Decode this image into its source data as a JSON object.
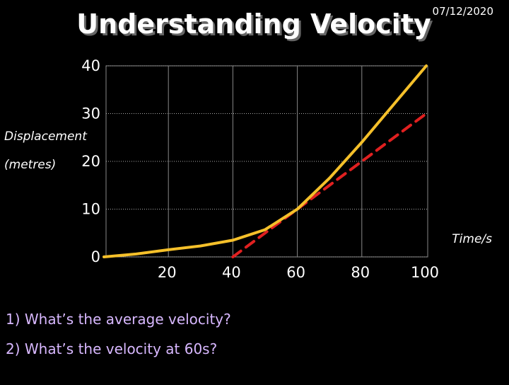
{
  "date": "07/12/2020",
  "questions": [
    "1)  What’s the average velocity?",
    "2)  What’s the velocity at 60s?"
  ],
  "chart_data": {
    "type": "line",
    "title": "Understanding Velocity",
    "y_label": [
      "Displacement",
      "(metres)"
    ],
    "x_label": "Time/s",
    "xlim": [
      0,
      100
    ],
    "xticks": [
      20,
      40,
      60,
      80,
      100
    ],
    "ylim": [
      0,
      40
    ],
    "yticks": [
      0,
      10,
      20,
      30,
      40
    ],
    "grid": true,
    "series": [
      {
        "color": "#f5c02a",
        "style": "solid",
        "x": [
          0,
          10,
          20,
          30,
          40,
          50,
          60,
          70,
          80,
          90,
          100
        ],
        "values": [
          0,
          0.6,
          1.5,
          2.3,
          3.5,
          5.7,
          10,
          16.5,
          24,
          32,
          40
        ]
      },
      {
        "color": "#e02020",
        "style": "dashed",
        "x": [
          40,
          100
        ],
        "values": [
          0,
          30
        ]
      }
    ]
  }
}
